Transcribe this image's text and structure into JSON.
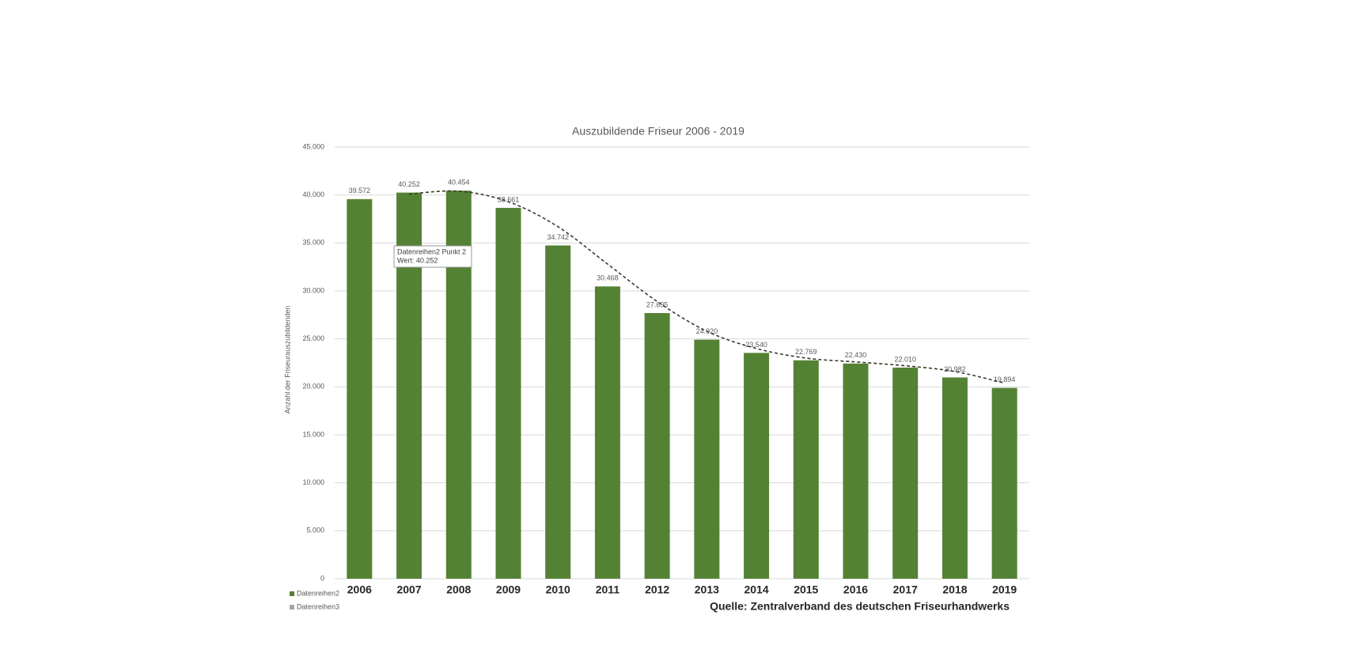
{
  "chart_data": {
    "type": "bar",
    "title": "Auszubildende Friseur 2006 - 2019",
    "y_label": "Anzahl der Friseurauszubildenden",
    "source": "Quelle: Zentralverband des deutschen Friseurhandwerks",
    "categories": [
      "2006",
      "2007",
      "2008",
      "2009",
      "2010",
      "2011",
      "2012",
      "2013",
      "2014",
      "2015",
      "2016",
      "2017",
      "2018",
      "2019"
    ],
    "series": [
      {
        "name": "Datenreihen2",
        "color": "#548235",
        "type": "bar",
        "values": [
          39572,
          40252,
          40454,
          38661,
          34742,
          30468,
          27695,
          24920,
          23540,
          22769,
          22430,
          22010,
          20982,
          19894
        ],
        "value_labels": [
          "39.572",
          "40.252",
          "40.454",
          "38.661",
          "34.742",
          "30.468",
          "27.695",
          "24.920",
          "23.540",
          "22.769",
          "22.430",
          "22.010",
          "20.982",
          "19.894"
        ]
      },
      {
        "name": "Datenreihen3",
        "color": "#a6a6a6",
        "line_color": "#3a3a2a",
        "type": "line",
        "values": [
          null,
          40100,
          40400,
          39300,
          36700,
          32800,
          28900,
          25800,
          24000,
          23000,
          22600,
          22200,
          21600,
          20400
        ]
      }
    ],
    "tooltip": [
      "Datenreihen2 Punkt 2",
      "Wert: 40.252"
    ],
    "ylim": [
      0,
      45000
    ],
    "yticks": [
      0,
      {
        "value": 5000,
        "label": "5.000"
      },
      {
        "value": 10000,
        "label": "10.000"
      },
      {
        "value": 15000,
        "label": "15.000"
      },
      {
        "value": 20000,
        "label": "20.000"
      },
      {
        "value": 25000,
        "label": "25.000"
      },
      {
        "value": 30000,
        "label": "30.000"
      },
      {
        "value": 35000,
        "label": "35.000"
      },
      {
        "value": 40000,
        "label": "40.000"
      },
      {
        "value": 45000,
        "label": "45.000"
      }
    ],
    "grid": true
  }
}
